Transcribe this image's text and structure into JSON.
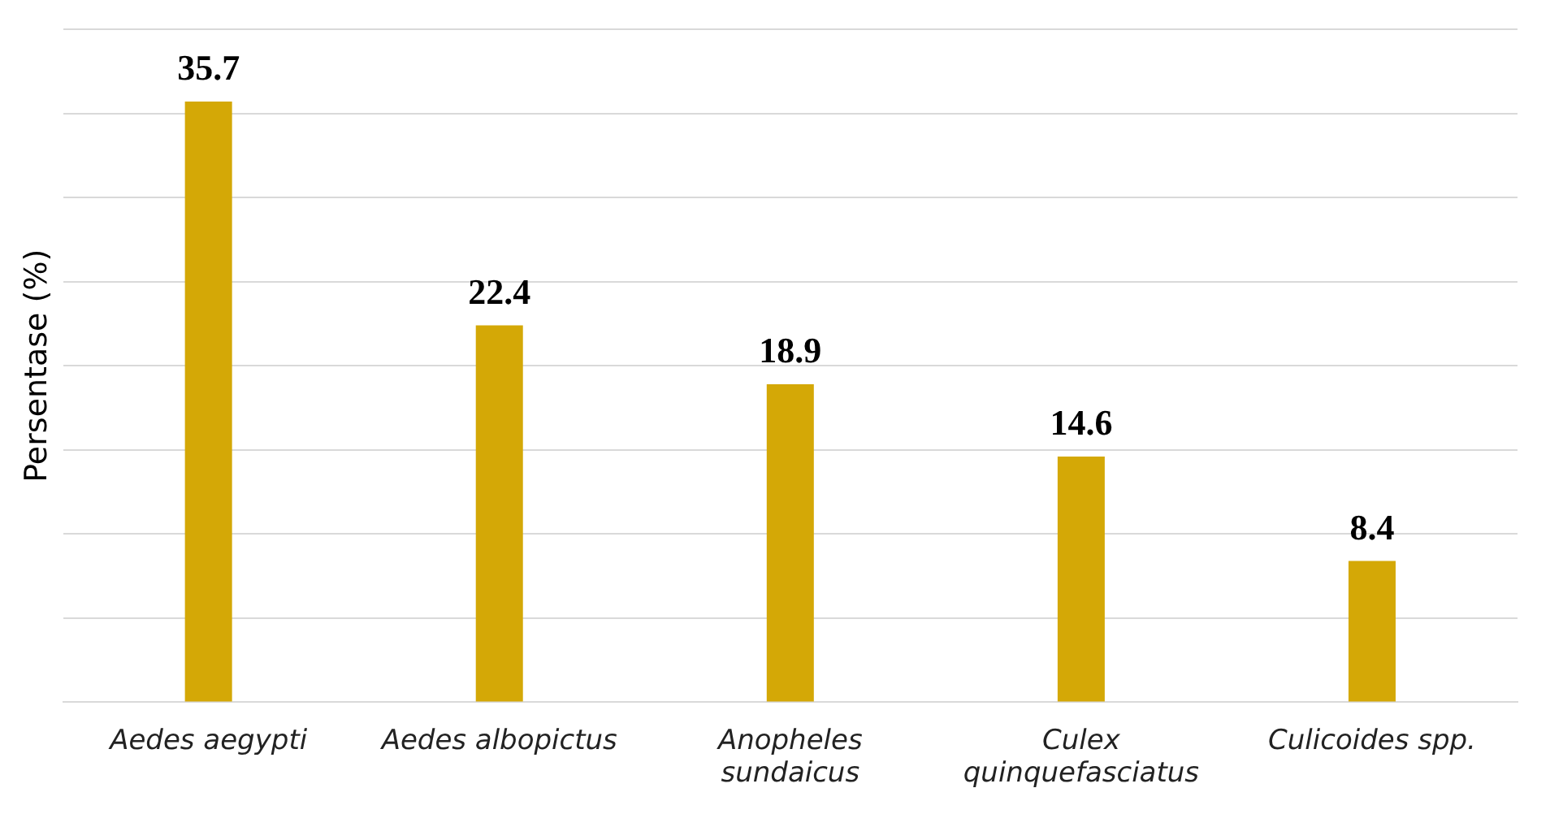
{
  "chart_data": {
    "type": "bar",
    "ylabel": "Persentase (%)",
    "categories": [
      "Aedes aegypti",
      "Aedes albopictus",
      "Anopheles sundaicus",
      "Culex quinquefasciatus",
      "Culicoides spp."
    ],
    "values": [
      35.7,
      22.4,
      18.9,
      14.6,
      8.4
    ],
    "color": "#d4a806",
    "ylim": [
      0,
      40
    ],
    "yticks": [
      {
        "value": 0,
        "label": null
      },
      {
        "value": 5,
        "label": null
      },
      {
        "value": 10,
        "label": null
      },
      {
        "value": 15,
        "label": null
      },
      {
        "value": 20,
        "label": null
      },
      {
        "value": 25,
        "label": null
      },
      {
        "value": 30,
        "label": null
      },
      {
        "value": 35,
        "label": null
      },
      {
        "value": 40,
        "label": null
      }
    ],
    "grid": "y",
    "data_labels": true,
    "tick_labels": "x",
    "legend": false
  }
}
